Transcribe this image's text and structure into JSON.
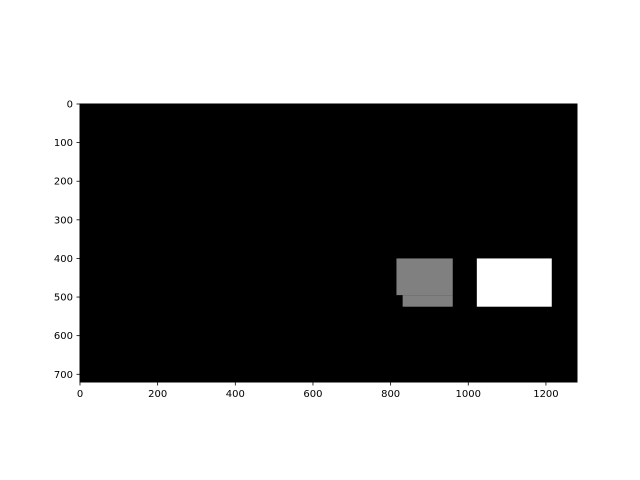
{
  "chart_data": {
    "type": "heatmap",
    "title": "",
    "xlabel": "",
    "ylabel": "",
    "xlim": [
      0,
      1280
    ],
    "ylim": [
      720,
      0
    ],
    "x_ticks": [
      0,
      200,
      400,
      600,
      800,
      1000,
      1200
    ],
    "y_ticks": [
      0,
      100,
      200,
      300,
      400,
      500,
      600,
      700
    ],
    "x_tick_labels": [
      "0",
      "200",
      "400",
      "600",
      "800",
      "1000",
      "1200"
    ],
    "y_tick_labels": [
      "0",
      "100",
      "200",
      "300",
      "400",
      "500",
      "600",
      "700"
    ],
    "grid": false,
    "background_color": "#000000",
    "regions": [
      {
        "x0": 815,
        "x1": 960,
        "y0": 400,
        "y1": 495,
        "color": "#808080"
      },
      {
        "x0": 831,
        "x1": 960,
        "y0": 495,
        "y1": 525,
        "color": "#808080"
      },
      {
        "x0": 1022,
        "x1": 1215,
        "y0": 400,
        "y1": 525,
        "color": "#ffffff"
      }
    ]
  }
}
